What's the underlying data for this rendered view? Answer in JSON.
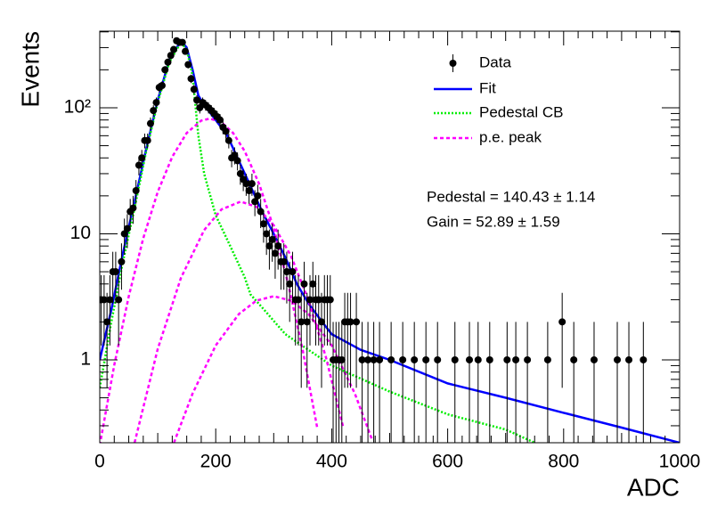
{
  "chart_data": {
    "type": "errorbar",
    "x_label": "ADC",
    "y_label": "Events",
    "xlim": [
      0,
      1000
    ],
    "ylim": [
      0.22,
      405
    ],
    "log_y": true,
    "xticks": [
      0,
      200,
      400,
      600,
      800,
      1000
    ],
    "yticks": [
      1,
      10,
      {
        "value": 100,
        "label": "10²"
      }
    ],
    "annotations": [
      "Pedestal = 140.43 ± 1.14",
      "Gain = 52.89 ± 1.59"
    ],
    "series": [
      {
        "name": "Data",
        "color": "#000000",
        "x": [
          2.5,
          7.5,
          12.5,
          17.5,
          22.5,
          27.5,
          32.5,
          37.5,
          42.5,
          47.5,
          52.5,
          57.5,
          62.5,
          67.5,
          72.5,
          77.5,
          82.5,
          87.5,
          92.5,
          97.5,
          102.5,
          107.5,
          112.5,
          117.5,
          122.5,
          127.5,
          132.5,
          137.5,
          142.5,
          147.5,
          152.5,
          157.5,
          162.5,
          167.5,
          172.5,
          177.5,
          182.5,
          187.5,
          192.5,
          197.5,
          202.5,
          207.5,
          212.5,
          217.5,
          222.5,
          227.5,
          232.5,
          237.5,
          242.5,
          247.5,
          252.5,
          257.5,
          262.5,
          267.5,
          272.5,
          277.5,
          282.5,
          287.5,
          292.5,
          297.5,
          302.5,
          307.5,
          312.5,
          317.5,
          322.5,
          327.5,
          332.5,
          337.5,
          342.5,
          347.5,
          352.5,
          357.5,
          362.5,
          367.5,
          372.5,
          377.5,
          382.5,
          387.5,
          392.5,
          397.5,
          402.5,
          407.5,
          412.5,
          417.5,
          422.5,
          427.5,
          432.5,
          442.5,
          452.5,
          462.5,
          472.5,
          482.5,
          502.5,
          522.5,
          542.5,
          562.5,
          582.5,
          612.5,
          637.5,
          652.5,
          672.5,
          702.5,
          717.5,
          737.5,
          772.5,
          797.5,
          817.5,
          852.5,
          892.5,
          912.5,
          937.5
        ],
        "values": [
          3,
          3,
          2,
          3,
          5,
          5,
          3,
          6,
          10,
          11,
          15,
          16,
          22,
          35,
          40,
          55,
          55,
          75,
          95,
          110,
          145,
          150,
          200,
          230,
          260,
          290,
          340,
          330,
          330,
          280,
          220,
          170,
          140,
          115,
          100,
          110,
          105,
          100,
          95,
          90,
          85,
          80,
          70,
          65,
          55,
          40,
          42,
          38,
          30,
          27,
          25,
          22,
          25,
          18,
          20,
          15,
          12,
          10,
          8,
          9,
          7,
          8,
          6,
          6,
          5,
          4,
          5,
          3,
          3,
          2,
          4,
          2,
          3,
          4,
          3,
          3,
          2,
          3,
          3,
          3,
          1,
          1,
          1,
          1,
          2,
          2,
          2,
          2,
          1,
          1,
          1,
          1,
          1,
          1,
          1,
          1,
          1,
          1,
          1,
          1,
          1,
          1,
          1,
          1,
          1,
          2,
          1,
          1,
          1,
          1,
          1
        ],
        "errors": [
          1.7,
          1.7,
          1.4,
          1.7,
          2.2,
          2.2,
          1.7,
          2.4,
          3.2,
          3.3,
          3.9,
          4,
          4.7,
          5.9,
          6.3,
          7.4,
          7.4,
          8.7,
          9.7,
          10.5,
          12,
          12.2,
          14.1,
          15.2,
          16.1,
          17,
          18.4,
          18.2,
          18.2,
          16.7,
          14.8,
          13,
          11.8,
          10.7,
          10,
          10.5,
          10.2,
          10,
          9.7,
          9.5,
          9.2,
          8.9,
          8.4,
          8.1,
          7.4,
          6.3,
          6.5,
          6.2,
          5.5,
          5.2,
          5,
          4.7,
          5,
          4.2,
          4.5,
          3.9,
          3.5,
          3.2,
          2.8,
          3,
          2.6,
          2.8,
          2.4,
          2.4,
          2.2,
          2,
          2.2,
          1.7,
          1.7,
          1.4,
          2,
          1.4,
          1.7,
          2,
          1.7,
          1.7,
          1.4,
          1.7,
          1.7,
          1.7,
          1,
          1,
          1,
          1,
          1.4,
          1.4,
          1.4,
          1.4,
          1,
          1,
          1,
          1,
          1,
          1,
          1,
          1,
          1,
          1,
          1,
          1,
          1,
          1,
          1,
          1,
          1,
          1.4,
          1,
          1,
          1,
          1,
          1
        ]
      },
      {
        "name": "Fit",
        "color": "#0000ff",
        "x": [
          0,
          20,
          40,
          60,
          80,
          100,
          120,
          140,
          150,
          160,
          170,
          180,
          200,
          220,
          250,
          280,
          300,
          320,
          340,
          360,
          380,
          400,
          450,
          500,
          600,
          700,
          800,
          900,
          1000
        ],
        "values": [
          1.0,
          2.5,
          7,
          18,
          47,
          115,
          240,
          340,
          300,
          200,
          125,
          105,
          80,
          60,
          30,
          15,
          10,
          6.5,
          4,
          2.8,
          2.1,
          1.6,
          1.2,
          1.0,
          0.65,
          0.5,
          0.38,
          0.29,
          0.22
        ]
      },
      {
        "name": "Pedestal CB",
        "color": "#00ee00",
        "x": [
          0,
          20,
          40,
          60,
          80,
          100,
          120,
          140,
          150,
          160,
          170,
          180,
          200,
          225,
          250,
          260,
          280,
          320,
          400,
          500,
          600,
          700,
          750
        ],
        "values": [
          0.6,
          2,
          6,
          16,
          45,
          110,
          230,
          330,
          290,
          180,
          60,
          30,
          14,
          8,
          4.5,
          3.3,
          2.6,
          1.6,
          0.9,
          0.56,
          0.37,
          0.28,
          0.22
        ]
      },
      {
        "name": "p.e. peak",
        "color": "#ff00ff",
        "curves": [
          {
            "x": [
              0,
              25,
              50,
              75,
              100,
              125,
              150,
              175,
              190,
              210,
              230,
              250,
              275,
              300,
              325,
              350,
              375
            ],
            "values": [
              0.21,
              0.91,
              3.2,
              9.2,
              21.5,
              40.8,
              63,
              79,
              82,
              76.7,
              63,
              45.2,
              24.8,
              11.1,
              4.0,
              1.19,
              0.29
            ]
          },
          {
            "x": [
              60,
              100,
              140,
              180,
              210,
              243,
              270,
              300,
              330,
              360,
              390,
              420
            ],
            "values": [
              0.22,
              1.22,
              4.46,
              10.7,
              15.6,
              18,
              16.4,
              11.7,
              6.65,
              2.97,
              1.05,
              0.29
            ]
          },
          {
            "x": [
              128,
              160,
              200,
              240,
              270,
              300,
              330,
              360,
              400,
              440,
              470
            ],
            "values": [
              0.22,
              0.54,
              1.3,
              2.31,
              2.95,
              3.2,
              2.95,
              2.31,
              1.3,
              0.54,
              0.23
            ]
          }
        ]
      }
    ]
  }
}
